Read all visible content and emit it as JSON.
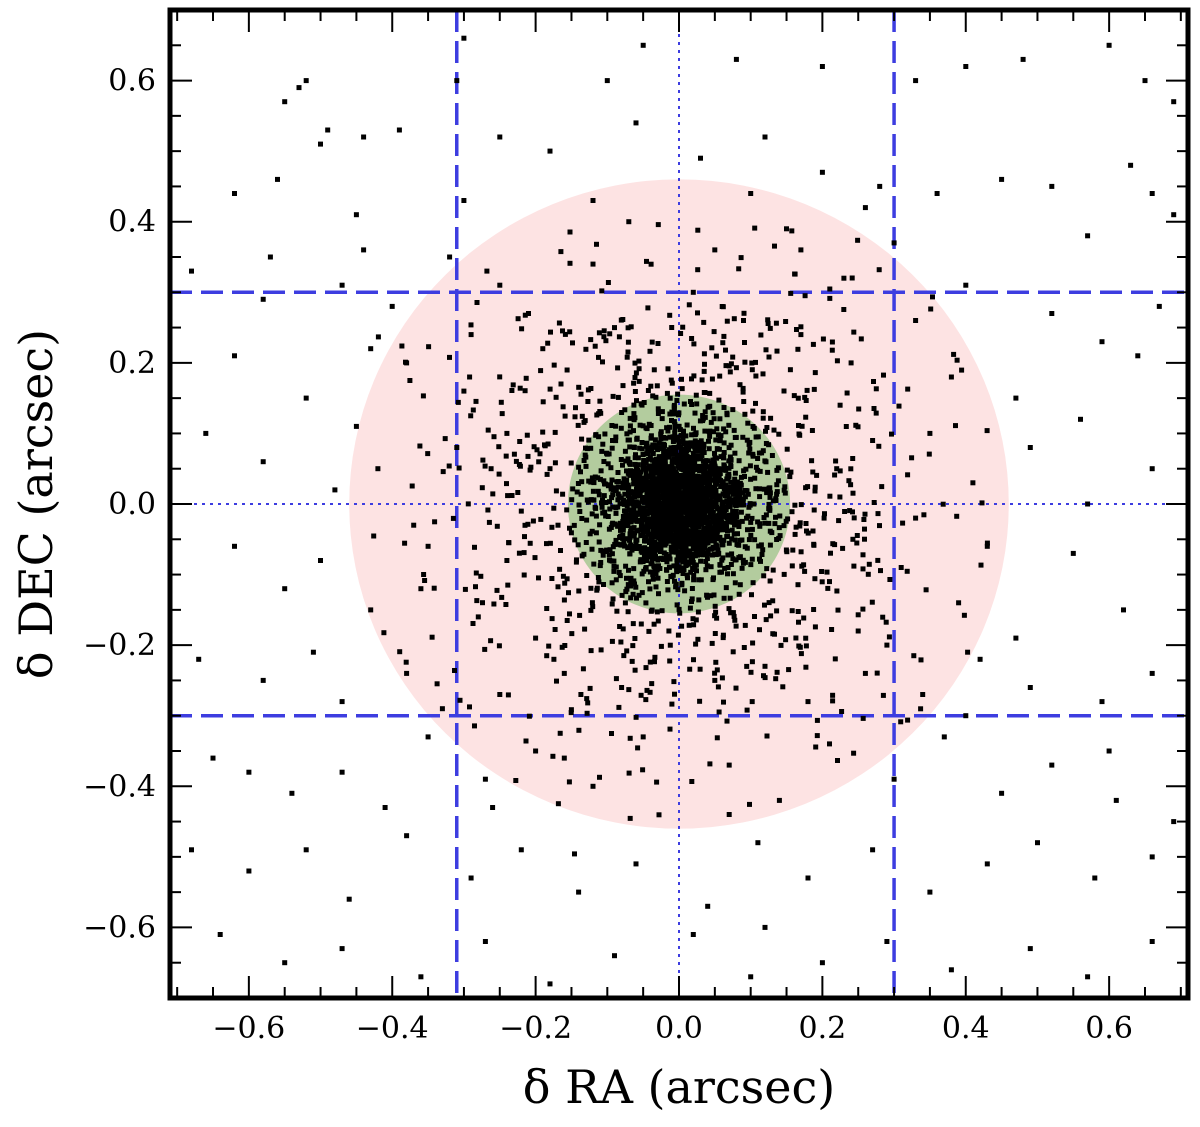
{
  "chart_data": {
    "type": "scatter",
    "title": "",
    "xlabel": "δ RA (arcsec)",
    "ylabel": "δ DEC (arcsec)",
    "xlim": [
      -0.71,
      0.71
    ],
    "ylim": [
      -0.7,
      0.7
    ],
    "x_ticks": [
      -0.6,
      -0.4,
      -0.2,
      0.0,
      0.2,
      0.4,
      0.6
    ],
    "y_ticks": [
      -0.6,
      -0.4,
      -0.2,
      0.0,
      0.2,
      0.4,
      0.6
    ],
    "x_tick_labels": [
      "−0.6",
      "−0.4",
      "−0.2",
      "0.0",
      "0.2",
      "0.4",
      "0.6"
    ],
    "y_tick_labels": [
      "−0.6",
      "−0.4",
      "−0.2",
      "0.0",
      "0.2",
      "0.4",
      "0.6"
    ],
    "minor_tick_step": 0.05,
    "grid": false,
    "circles": [
      {
        "name": "outer-region",
        "center": [
          0.0,
          0.0
        ],
        "radius": 0.46,
        "color": "#fde3e3"
      },
      {
        "name": "inner-region",
        "center": [
          0.0,
          0.0
        ],
        "radius": 0.155,
        "color": "#b3cc9e"
      }
    ],
    "reference_lines": [
      {
        "orientation": "vertical",
        "value": -0.31,
        "style": "dashed",
        "color": "#3d3de0"
      },
      {
        "orientation": "vertical",
        "value": 0.3,
        "style": "dashed",
        "color": "#3d3de0"
      },
      {
        "orientation": "horizontal",
        "value": 0.3,
        "style": "dashed",
        "color": "#3d3de0"
      },
      {
        "orientation": "horizontal",
        "value": -0.3,
        "style": "dashed",
        "color": "#3d3de0"
      },
      {
        "orientation": "vertical",
        "value": 0.0,
        "style": "dotted",
        "color": "#3d3de0"
      },
      {
        "orientation": "horizontal",
        "value": 0.0,
        "style": "dotted",
        "color": "#3d3de0"
      }
    ],
    "series": [
      {
        "marker_color": "#000000",
        "points": [
          [
            -0.52,
            0.6
          ],
          [
            -0.53,
            0.59
          ],
          [
            -0.55,
            0.57
          ],
          [
            -0.5,
            0.51
          ],
          [
            -0.49,
            0.53
          ],
          [
            -0.44,
            0.52
          ],
          [
            -0.39,
            0.53
          ],
          [
            -0.3,
            0.66
          ],
          [
            -0.31,
            0.6
          ],
          [
            -0.05,
            0.65
          ],
          [
            0.08,
            0.63
          ],
          [
            0.2,
            0.62
          ],
          [
            0.33,
            0.6
          ],
          [
            0.4,
            0.62
          ],
          [
            0.48,
            0.63
          ],
          [
            0.6,
            0.65
          ],
          [
            0.65,
            0.6
          ],
          [
            0.69,
            0.57
          ],
          [
            -0.62,
            0.44
          ],
          [
            -0.56,
            0.46
          ],
          [
            -0.45,
            0.41
          ],
          [
            -0.3,
            0.43
          ],
          [
            -0.25,
            0.52
          ],
          [
            -0.18,
            0.5
          ],
          [
            -0.06,
            0.54
          ],
          [
            0.03,
            0.49
          ],
          [
            0.12,
            0.52
          ],
          [
            0.2,
            0.47
          ],
          [
            0.28,
            0.45
          ],
          [
            0.36,
            0.44
          ],
          [
            0.45,
            0.46
          ],
          [
            0.52,
            0.45
          ],
          [
            0.63,
            0.48
          ],
          [
            0.66,
            0.44
          ],
          [
            0.69,
            0.41
          ],
          [
            -0.68,
            0.33
          ],
          [
            -0.58,
            0.29
          ],
          [
            -0.47,
            0.31
          ],
          [
            -0.44,
            0.36
          ],
          [
            -0.32,
            0.35
          ],
          [
            -0.25,
            0.31
          ],
          [
            -0.12,
            0.34
          ],
          [
            0.05,
            0.36
          ],
          [
            0.15,
            0.39
          ],
          [
            0.23,
            0.32
          ],
          [
            0.3,
            0.37
          ],
          [
            0.4,
            0.31
          ],
          [
            0.52,
            0.27
          ],
          [
            0.59,
            0.23
          ],
          [
            0.67,
            0.28
          ],
          [
            -0.62,
            0.21
          ],
          [
            -0.52,
            0.15
          ],
          [
            -0.45,
            0.11
          ],
          [
            -0.38,
            0.2
          ],
          [
            -0.29,
            0.24
          ],
          [
            -0.21,
            0.27
          ],
          [
            -0.19,
            0.22
          ],
          [
            -0.09,
            0.25
          ],
          [
            0.02,
            0.3
          ],
          [
            0.09,
            0.26
          ],
          [
            0.17,
            0.24
          ],
          [
            0.24,
            0.2
          ],
          [
            0.33,
            0.26
          ],
          [
            0.38,
            0.18
          ],
          [
            0.47,
            0.15
          ],
          [
            0.56,
            0.12
          ],
          [
            0.64,
            0.21
          ],
          [
            -0.66,
            0.1
          ],
          [
            -0.58,
            0.06
          ],
          [
            -0.48,
            0.02
          ],
          [
            -0.42,
            0.05
          ],
          [
            -0.37,
            -0.03
          ],
          [
            -0.31,
            0.08
          ],
          [
            -0.24,
            0.1
          ],
          [
            -0.18,
            0.05
          ],
          [
            -0.22,
            -0.01
          ],
          [
            0.22,
            0.05
          ],
          [
            0.27,
            0.09
          ],
          [
            0.33,
            -0.02
          ],
          [
            0.41,
            0.03
          ],
          [
            0.49,
            0.08
          ],
          [
            0.57,
            0.0
          ],
          [
            0.66,
            0.05
          ],
          [
            -0.62,
            -0.06
          ],
          [
            -0.55,
            -0.12
          ],
          [
            -0.5,
            -0.08
          ],
          [
            -0.43,
            -0.15
          ],
          [
            -0.36,
            -0.12
          ],
          [
            -0.28,
            -0.16
          ],
          [
            -0.24,
            -0.08
          ],
          [
            -0.2,
            -0.19
          ],
          [
            0.21,
            -0.11
          ],
          [
            0.25,
            -0.18
          ],
          [
            0.31,
            -0.09
          ],
          [
            0.39,
            -0.14
          ],
          [
            0.47,
            -0.19
          ],
          [
            0.55,
            -0.07
          ],
          [
            0.62,
            -0.15
          ],
          [
            -0.67,
            -0.22
          ],
          [
            -0.58,
            -0.25
          ],
          [
            -0.51,
            -0.21
          ],
          [
            -0.47,
            -0.28
          ],
          [
            -0.38,
            -0.24
          ],
          [
            -0.33,
            -0.29
          ],
          [
            -0.25,
            -0.27
          ],
          [
            -0.16,
            -0.24
          ],
          [
            -0.08,
            -0.26
          ],
          [
            0.05,
            -0.25
          ],
          [
            0.12,
            -0.23
          ],
          [
            0.18,
            -0.28
          ],
          [
            0.26,
            -0.24
          ],
          [
            0.34,
            -0.27
          ],
          [
            0.42,
            -0.22
          ],
          [
            0.49,
            -0.26
          ],
          [
            0.59,
            -0.28
          ],
          [
            0.66,
            -0.24
          ],
          [
            -0.65,
            -0.36
          ],
          [
            -0.54,
            -0.41
          ],
          [
            -0.47,
            -0.38
          ],
          [
            -0.41,
            -0.43
          ],
          [
            -0.35,
            -0.33
          ],
          [
            -0.27,
            -0.39
          ],
          [
            -0.2,
            -0.35
          ],
          [
            -0.12,
            -0.4
          ],
          [
            -0.05,
            -0.33
          ],
          [
            0.07,
            -0.37
          ],
          [
            0.14,
            -0.42
          ],
          [
            0.21,
            -0.34
          ],
          [
            0.3,
            -0.39
          ],
          [
            0.37,
            -0.33
          ],
          [
            0.45,
            -0.41
          ],
          [
            0.52,
            -0.37
          ],
          [
            0.61,
            -0.42
          ],
          [
            0.69,
            -0.45
          ],
          [
            -0.68,
            -0.49
          ],
          [
            -0.6,
            -0.52
          ],
          [
            -0.52,
            -0.49
          ],
          [
            -0.46,
            -0.56
          ],
          [
            -0.38,
            -0.47
          ],
          [
            -0.29,
            -0.53
          ],
          [
            -0.22,
            -0.49
          ],
          [
            -0.14,
            -0.55
          ],
          [
            -0.06,
            -0.51
          ],
          [
            0.04,
            -0.57
          ],
          [
            0.11,
            -0.48
          ],
          [
            0.18,
            -0.53
          ],
          [
            0.27,
            -0.49
          ],
          [
            0.35,
            -0.55
          ],
          [
            0.43,
            -0.51
          ],
          [
            0.5,
            -0.48
          ],
          [
            0.58,
            -0.53
          ],
          [
            0.66,
            -0.5
          ],
          [
            -0.64,
            -0.61
          ],
          [
            -0.55,
            -0.65
          ],
          [
            -0.47,
            -0.63
          ],
          [
            -0.36,
            -0.67
          ],
          [
            -0.27,
            -0.62
          ],
          [
            -0.18,
            -0.68
          ],
          [
            -0.09,
            -0.64
          ],
          [
            0.02,
            -0.61
          ],
          [
            0.1,
            -0.67
          ],
          [
            0.2,
            -0.65
          ],
          [
            0.29,
            -0.62
          ],
          [
            0.38,
            -0.66
          ],
          [
            0.49,
            -0.63
          ],
          [
            0.57,
            -0.67
          ],
          [
            0.66,
            -0.62
          ],
          [
            -0.12,
            0.43
          ],
          [
            0.1,
            0.44
          ],
          [
            -0.3,
            0.16
          ],
          [
            0.29,
            -0.2
          ],
          [
            -0.16,
            -0.36
          ],
          [
            0.17,
            0.36
          ],
          [
            -0.4,
            0.28
          ],
          [
            0.4,
            -0.3
          ],
          [
            -0.07,
            0.4
          ],
          [
            0.07,
            -0.44
          ],
          [
            -0.35,
            -0.06
          ],
          [
            0.35,
            0.1
          ],
          [
            -0.26,
            -0.43
          ],
          [
            0.26,
            0.42
          ],
          [
            -0.43,
            0.22
          ],
          [
            0.43,
            -0.06
          ],
          [
            -0.1,
            0.6
          ],
          [
            0.12,
            -0.6
          ],
          [
            -0.57,
            0.35
          ],
          [
            0.57,
            0.38
          ],
          [
            -0.6,
            -0.38
          ],
          [
            0.6,
            -0.35
          ]
        ]
      }
    ]
  }
}
